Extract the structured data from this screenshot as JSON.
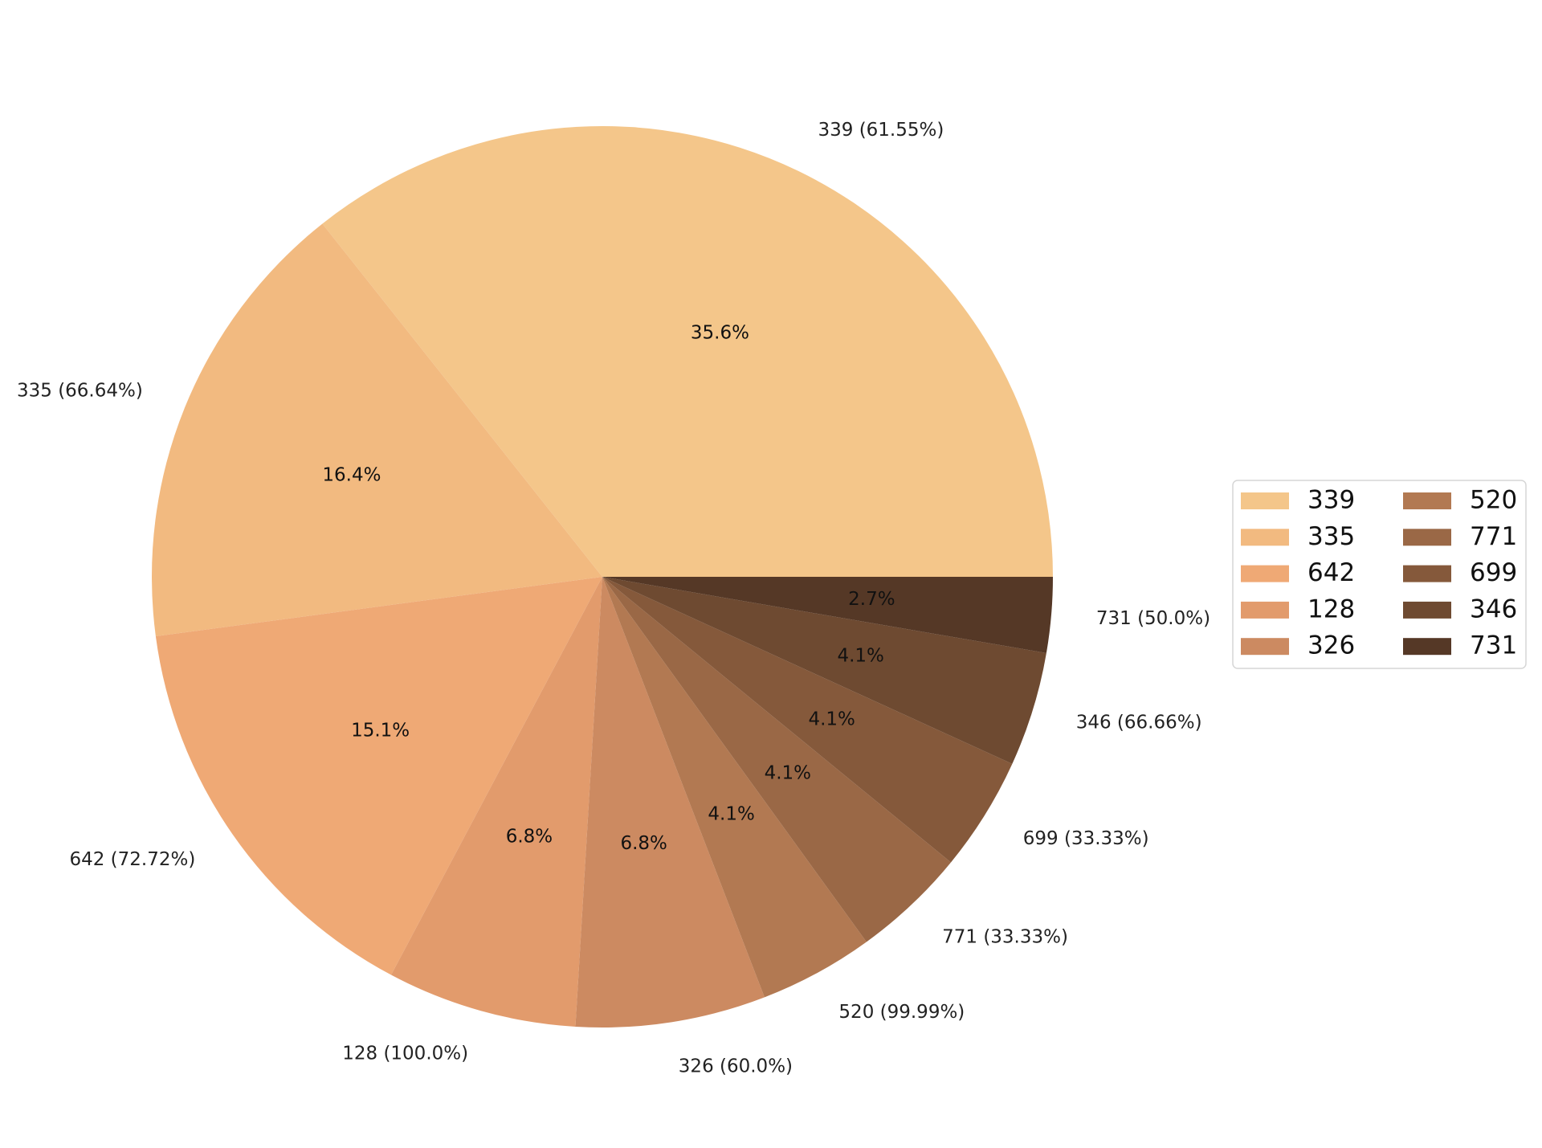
{
  "chart_data": {
    "type": "pie",
    "slices": [
      {
        "label": "339",
        "outer_label": "339 (61.55%)",
        "pct_label": "35.6%",
        "value": 35.6,
        "color": "#F4C68A"
      },
      {
        "label": "335",
        "outer_label": "335 (66.64%)",
        "pct_label": "16.4%",
        "value": 16.4,
        "color": "#F2BA80"
      },
      {
        "label": "642",
        "outer_label": "642 (72.72%)",
        "pct_label": "15.1%",
        "value": 15.1,
        "color": "#EFA975"
      },
      {
        "label": "128",
        "outer_label": "128 (100.0%)",
        "pct_label": "6.8%",
        "value": 6.8,
        "color": "#E29B6C"
      },
      {
        "label": "326",
        "outer_label": "326 (60.0%)",
        "pct_label": "6.8%",
        "value": 6.8,
        "color": "#CC8A61"
      },
      {
        "label": "520",
        "outer_label": "520 (99.99%)",
        "pct_label": "4.1%",
        "value": 4.1,
        "color": "#B27952"
      },
      {
        "label": "771",
        "outer_label": "771 (33.33%)",
        "pct_label": "4.1%",
        "value": 4.1,
        "color": "#9A6846"
      },
      {
        "label": "699",
        "outer_label": "699 (33.33%)",
        "pct_label": "4.1%",
        "value": 4.1,
        "color": "#85593B"
      },
      {
        "label": "346",
        "outer_label": "346 (66.66%)",
        "pct_label": "4.1%",
        "value": 4.1,
        "color": "#6E4A31"
      },
      {
        "label": "731",
        "outer_label": "731 (50.0%)",
        "pct_label": "2.7%",
        "value": 2.7,
        "color": "#553826"
      }
    ],
    "start_angle_deg": 0,
    "direction": "counterclockwise",
    "legend": {
      "placement": "center-right",
      "columns": 2
    },
    "title": ""
  }
}
